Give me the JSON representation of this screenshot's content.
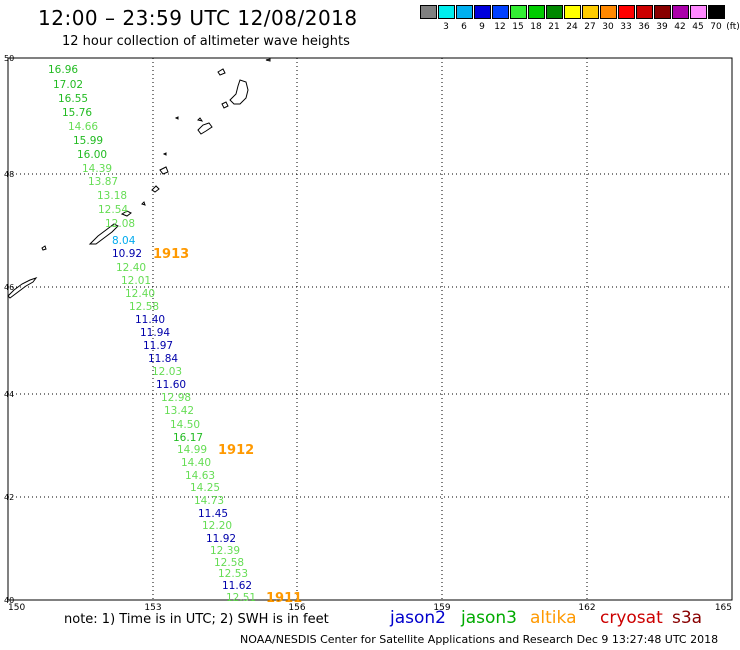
{
  "header": {
    "title": "12:00 – 23:59 UTC 12/08/2018",
    "subtitle": "12 hour collection of altimeter wave heights"
  },
  "colorbar": {
    "bins": [
      {
        "label": "",
        "color": "#808080"
      },
      {
        "label": "3",
        "color": "#00eeee"
      },
      {
        "label": "6",
        "color": "#00b0f0"
      },
      {
        "label": "9",
        "color": "#0000dd"
      },
      {
        "label": "12",
        "color": "#0040ff"
      },
      {
        "label": "15",
        "color": "#33ee33"
      },
      {
        "label": "18",
        "color": "#00cc00"
      },
      {
        "label": "21",
        "color": "#008800"
      },
      {
        "label": "24",
        "color": "#ffff00"
      },
      {
        "label": "27",
        "color": "#ffcc00"
      },
      {
        "label": "30",
        "color": "#ff8800"
      },
      {
        "label": "33",
        "color": "#ff0000"
      },
      {
        "label": "36",
        "color": "#cc0000"
      },
      {
        "label": "39",
        "color": "#880000"
      },
      {
        "label": "42",
        "color": "#aa00aa"
      },
      {
        "label": "45",
        "color": "#ff88ff"
      },
      {
        "label": "70",
        "color": "#000000"
      }
    ],
    "unit": "(ft)"
  },
  "axes": {
    "lon_ticks": [
      "150",
      "153",
      "156",
      "159",
      "162",
      "165"
    ],
    "lat_ticks": [
      "50",
      "48",
      "46",
      "44",
      "42",
      "40"
    ]
  },
  "passes": [
    {
      "label": "1913",
      "color": "#ff9900"
    },
    {
      "label": "1912",
      "color": "#ff9900"
    },
    {
      "label": "1911",
      "color": "#ff9900"
    }
  ],
  "observations": [
    {
      "text": "16.96",
      "color": "#22bb22"
    },
    {
      "text": "17.02",
      "color": "#22bb22"
    },
    {
      "text": "16.55",
      "color": "#22bb22"
    },
    {
      "text": "15.76",
      "color": "#22bb22"
    },
    {
      "text": "14.66",
      "color": "#66dd55"
    },
    {
      "text": "15.99",
      "color": "#22bb22"
    },
    {
      "text": "16.00",
      "color": "#22bb22"
    },
    {
      "text": "14.39",
      "color": "#66dd55"
    },
    {
      "text": "13.87",
      "color": "#66dd55"
    },
    {
      "text": "13.18",
      "color": "#66dd55"
    },
    {
      "text": "12.54",
      "color": "#66dd55"
    },
    {
      "text": "12.08",
      "color": "#66dd55"
    },
    {
      "text": "8.04",
      "color": "#00aaee"
    },
    {
      "text": "10.92",
      "color": "#0000aa"
    },
    {
      "text": "12.40",
      "color": "#66dd55"
    },
    {
      "text": "12.01",
      "color": "#66dd55"
    },
    {
      "text": "12.40",
      "color": "#66dd55"
    },
    {
      "text": "12.58",
      "color": "#66dd55"
    },
    {
      "text": "11.40",
      "color": "#0000aa"
    },
    {
      "text": "11.94",
      "color": "#0000aa"
    },
    {
      "text": "11.97",
      "color": "#0000aa"
    },
    {
      "text": "11.84",
      "color": "#0000aa"
    },
    {
      "text": "12.03",
      "color": "#66dd55"
    },
    {
      "text": "11.60",
      "color": "#0000aa"
    },
    {
      "text": "12.98",
      "color": "#66dd55"
    },
    {
      "text": "13.42",
      "color": "#66dd55"
    },
    {
      "text": "14.50",
      "color": "#66dd55"
    },
    {
      "text": "16.17",
      "color": "#22bb22"
    },
    {
      "text": "14.99",
      "color": "#66dd55"
    },
    {
      "text": "14.40",
      "color": "#66dd55"
    },
    {
      "text": "14.63",
      "color": "#66dd55"
    },
    {
      "text": "14.25",
      "color": "#66dd55"
    },
    {
      "text": "14.73",
      "color": "#66dd55"
    },
    {
      "text": "11.45",
      "color": "#0000aa"
    },
    {
      "text": "12.20",
      "color": "#66dd55"
    },
    {
      "text": "11.92",
      "color": "#0000aa"
    },
    {
      "text": "12.39",
      "color": "#66dd55"
    },
    {
      "text": "12.58",
      "color": "#66dd55"
    },
    {
      "text": "12.53",
      "color": "#66dd55"
    },
    {
      "text": "11.62",
      "color": "#0000aa"
    },
    {
      "text": "12.51",
      "color": "#66dd55"
    }
  ],
  "footer": {
    "note": "note:  1) Time is in UTC;  2) SWH is in feet",
    "credit": "NOAA/NESDIS Center for Satellite Applications and Research    Dec  9 13:27:48 UTC 2018",
    "satellites": [
      {
        "name": "jason2",
        "color": "#0000cc"
      },
      {
        "name": "jason3",
        "color": "#00aa00"
      },
      {
        "name": "altika",
        "color": "#ff9900"
      },
      {
        "name": "cryosat",
        "color": "#cc0000"
      },
      {
        "name": "s3a",
        "color": "#880000"
      }
    ]
  }
}
